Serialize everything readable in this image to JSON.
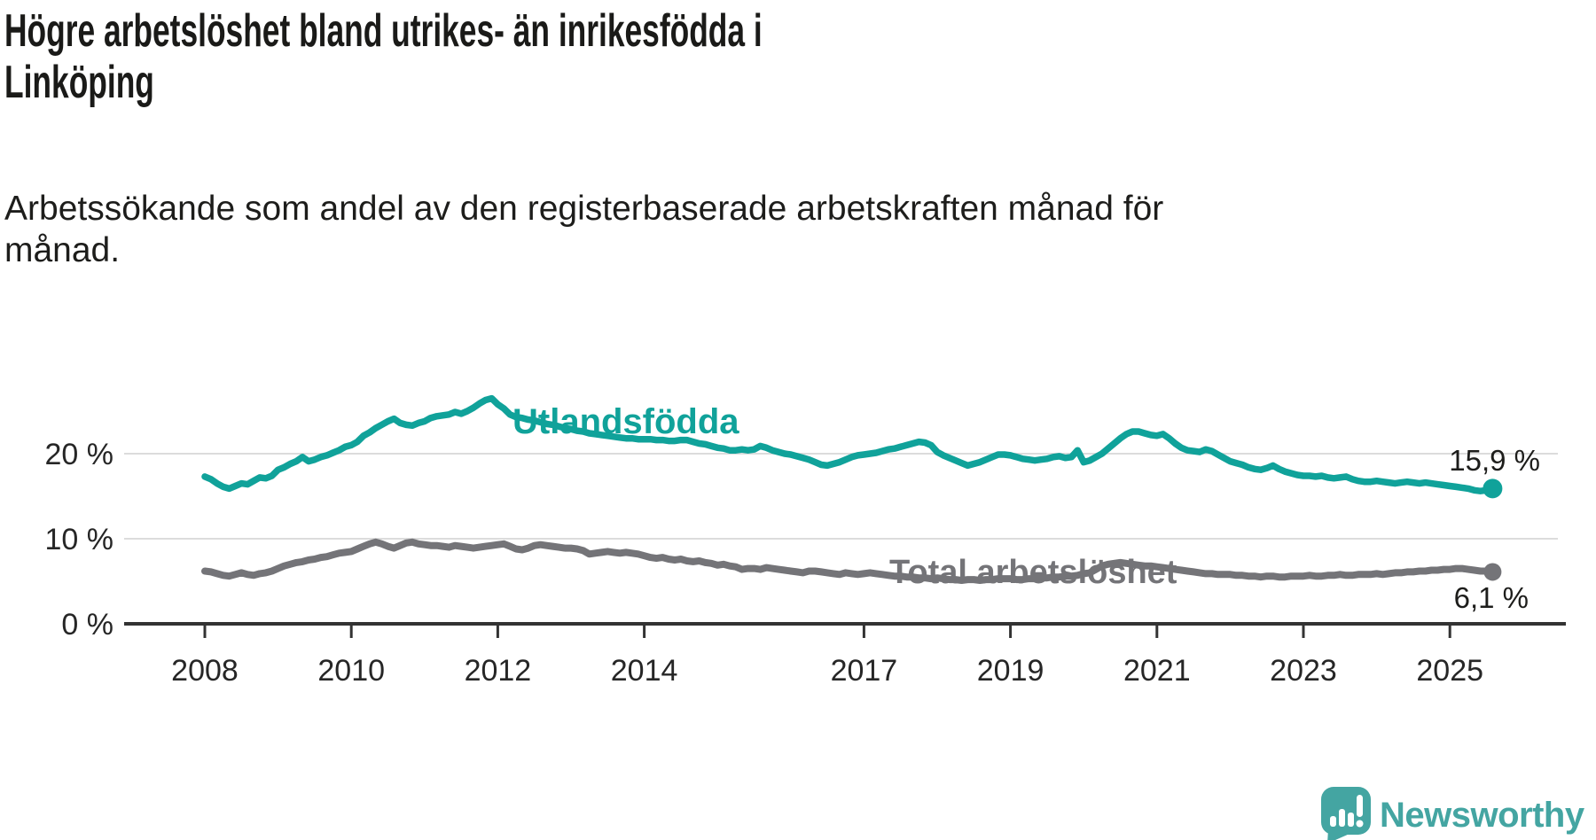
{
  "title": {
    "lines": [
      "Högre arbetslöshet bland utrikes- än inrikesfödda i",
      "Linköping"
    ]
  },
  "subtitle": {
    "lines": [
      "Arbetssökande som andel av den registerbaserade arbetskraften månad för",
      "månad."
    ]
  },
  "chart_data": {
    "type": "line",
    "unit": "%",
    "x_start": {
      "year": 2008,
      "month": 1
    },
    "x_end": {
      "year": 2025,
      "month": 8
    },
    "x_ticks": [
      2008,
      2010,
      2012,
      2014,
      2017,
      2019,
      2021,
      2023,
      2025
    ],
    "y_ticks": [
      {
        "value": 0,
        "label": "0 %"
      },
      {
        "value": 10,
        "label": "10 %"
      },
      {
        "value": 20,
        "label": "20 %"
      }
    ],
    "ylim": [
      0,
      28
    ],
    "grid": "horizontal",
    "legend_position": "inline-labels",
    "series": [
      {
        "name": "Utlandsfödda",
        "color": "#10A29A",
        "end_label": "15,9 %",
        "end_value": 15.9,
        "values": [
          17.3,
          17.0,
          16.5,
          16.1,
          15.9,
          16.2,
          16.5,
          16.4,
          16.8,
          17.2,
          17.1,
          17.4,
          18.1,
          18.4,
          18.8,
          19.1,
          19.6,
          19.1,
          19.3,
          19.6,
          19.8,
          20.1,
          20.4,
          20.8,
          21.0,
          21.4,
          22.1,
          22.5,
          23.0,
          23.4,
          23.8,
          24.1,
          23.6,
          23.4,
          23.3,
          23.6,
          23.8,
          24.2,
          24.4,
          24.5,
          24.6,
          24.9,
          24.7,
          25.0,
          25.4,
          25.9,
          26.3,
          26.5,
          25.8,
          25.3,
          24.6,
          24.3,
          24.2,
          24.0,
          23.9,
          23.7,
          23.5,
          23.4,
          23.2,
          23.0,
          22.9,
          22.7,
          22.6,
          22.4,
          22.3,
          22.2,
          22.1,
          22.0,
          21.9,
          21.8,
          21.8,
          21.7,
          21.7,
          21.7,
          21.6,
          21.6,
          21.5,
          21.5,
          21.6,
          21.6,
          21.4,
          21.2,
          21.1,
          20.9,
          20.7,
          20.6,
          20.4,
          20.4,
          20.5,
          20.4,
          20.5,
          20.9,
          20.7,
          20.4,
          20.2,
          20.0,
          19.9,
          19.7,
          19.5,
          19.3,
          19.0,
          18.7,
          18.6,
          18.8,
          19.0,
          19.3,
          19.6,
          19.8,
          19.9,
          20.0,
          20.1,
          20.3,
          20.5,
          20.6,
          20.8,
          21.0,
          21.2,
          21.4,
          21.3,
          21.0,
          20.2,
          19.8,
          19.5,
          19.2,
          18.9,
          18.6,
          18.8,
          19.0,
          19.3,
          19.6,
          19.9,
          19.9,
          19.8,
          19.6,
          19.4,
          19.3,
          19.2,
          19.3,
          19.4,
          19.6,
          19.7,
          19.5,
          19.6,
          20.4,
          19.0,
          19.2,
          19.6,
          20.0,
          20.6,
          21.2,
          21.8,
          22.3,
          22.6,
          22.6,
          22.4,
          22.2,
          22.1,
          22.3,
          21.8,
          21.2,
          20.7,
          20.4,
          20.3,
          20.2,
          20.5,
          20.3,
          19.9,
          19.5,
          19.1,
          18.9,
          18.7,
          18.4,
          18.2,
          18.1,
          18.3,
          18.6,
          18.2,
          17.9,
          17.7,
          17.5,
          17.4,
          17.4,
          17.3,
          17.4,
          17.2,
          17.1,
          17.2,
          17.3,
          17.0,
          16.8,
          16.7,
          16.7,
          16.8,
          16.7,
          16.6,
          16.5,
          16.6,
          16.7,
          16.6,
          16.5,
          16.6,
          16.5,
          16.4,
          16.3,
          16.2,
          16.1,
          16.0,
          15.9,
          15.7,
          15.6,
          15.7,
          15.9
        ]
      },
      {
        "name": "Total arbetslöshet",
        "color": "#747478",
        "end_label": "6,1 %",
        "end_value": 6.1,
        "values": [
          6.2,
          6.1,
          5.9,
          5.7,
          5.6,
          5.8,
          6.0,
          5.8,
          5.7,
          5.9,
          6.0,
          6.2,
          6.5,
          6.8,
          7.0,
          7.2,
          7.3,
          7.5,
          7.6,
          7.8,
          7.9,
          8.1,
          8.3,
          8.4,
          8.5,
          8.8,
          9.1,
          9.4,
          9.6,
          9.4,
          9.1,
          8.9,
          9.2,
          9.5,
          9.6,
          9.4,
          9.3,
          9.2,
          9.2,
          9.1,
          9.0,
          9.2,
          9.1,
          9.0,
          8.9,
          9.0,
          9.1,
          9.2,
          9.3,
          9.4,
          9.1,
          8.8,
          8.7,
          8.9,
          9.2,
          9.3,
          9.2,
          9.1,
          9.0,
          8.9,
          8.9,
          8.8,
          8.6,
          8.2,
          8.3,
          8.4,
          8.5,
          8.4,
          8.3,
          8.4,
          8.3,
          8.2,
          8.0,
          7.8,
          7.7,
          7.8,
          7.6,
          7.5,
          7.6,
          7.4,
          7.3,
          7.4,
          7.2,
          7.1,
          6.9,
          7.0,
          6.8,
          6.7,
          6.4,
          6.5,
          6.5,
          6.4,
          6.6,
          6.5,
          6.4,
          6.3,
          6.2,
          6.1,
          6.0,
          6.2,
          6.2,
          6.1,
          6.0,
          5.9,
          5.8,
          6.0,
          5.9,
          5.8,
          5.9,
          6.0,
          5.9,
          5.8,
          5.7,
          5.6,
          5.6,
          5.5,
          5.5,
          5.4,
          5.4,
          5.3,
          5.4,
          5.3,
          5.2,
          5.2,
          5.1,
          5.2,
          5.2,
          5.1,
          5.2,
          5.2,
          5.3,
          5.3,
          5.3,
          5.2,
          5.2,
          5.3,
          5.3,
          5.4,
          5.4,
          5.5,
          5.5,
          5.6,
          5.6,
          5.7,
          5.9,
          6.0,
          6.4,
          6.8,
          7.0,
          7.1,
          7.2,
          7.1,
          7.0,
          6.9,
          6.8,
          6.8,
          6.7,
          6.6,
          6.5,
          6.4,
          6.3,
          6.2,
          6.1,
          6.0,
          5.9,
          5.9,
          5.8,
          5.8,
          5.8,
          5.7,
          5.7,
          5.6,
          5.6,
          5.5,
          5.6,
          5.6,
          5.5,
          5.5,
          5.6,
          5.6,
          5.6,
          5.7,
          5.6,
          5.6,
          5.7,
          5.7,
          5.8,
          5.7,
          5.7,
          5.8,
          5.8,
          5.8,
          5.9,
          5.8,
          5.9,
          6.0,
          6.0,
          6.1,
          6.1,
          6.2,
          6.2,
          6.3,
          6.3,
          6.4,
          6.4,
          6.5,
          6.5,
          6.4,
          6.3,
          6.2,
          6.2,
          6.1
        ]
      }
    ]
  },
  "footer": {
    "brand": "Newsworthy",
    "logo_icon": "newsworthy-speech-bubble-chart-icon",
    "color": "#44A5A2"
  },
  "colors": {
    "foreign_born_line": "#10A29A",
    "total_line": "#747478",
    "gridline": "#DCDCDC",
    "axis": "#333333",
    "text": "#1a1a18"
  }
}
